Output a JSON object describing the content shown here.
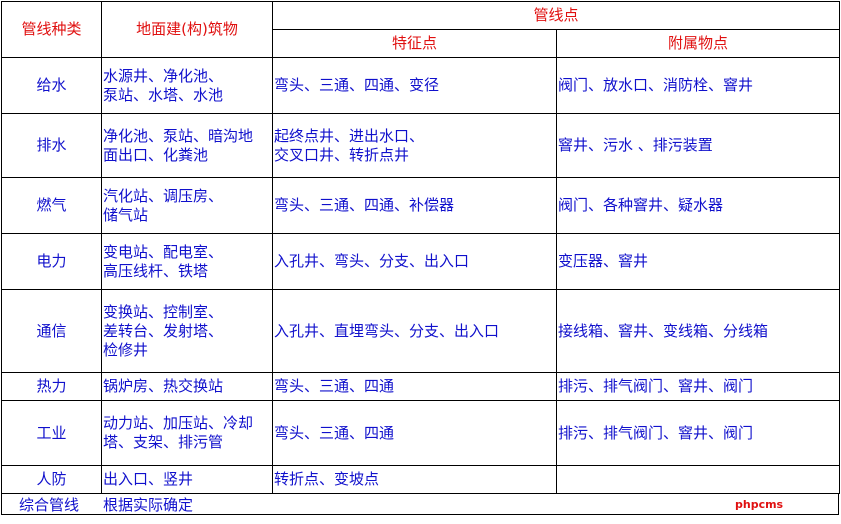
{
  "header": {
    "type": "管线种类",
    "buildings": "地面建(构)筑物",
    "points": "管线点",
    "features": "特征点",
    "attachments": "附属物点"
  },
  "rows": [
    {
      "type": "给水",
      "buildings": "水源井、净化池、\n泵站、水塔、水池",
      "features": "弯头、三通、四通、变径",
      "attachments": "阀门、放水口、消防栓、窨井"
    },
    {
      "type": "排水",
      "buildings": "净化池、泵站、暗沟地\n面出口、化粪池",
      "features": "起终点井、进出水口、\n交叉口井、转折点井",
      "attachments": "窨井、污水 、排污装置"
    },
    {
      "type": "燃气",
      "buildings": "汽化站、调压房、\n储气站",
      "features": "弯头、三通、四通、补偿器",
      "attachments": "阀门、各种窨井、疑水器"
    },
    {
      "type": "电力",
      "buildings": "变电站、配电室、\n高压线杆、铁塔",
      "features": "入孔井、弯头、分支、出入口",
      "attachments": "变压器、窨井"
    },
    {
      "type": "通信",
      "buildings": "变换站、控制室、\n差转台、发射塔、\n检修井",
      "features": "入孔井、直埋弯头、分支、出入口",
      "attachments": "接线箱、窨井、变线箱、分线箱"
    },
    {
      "type": "热力",
      "buildings": "锅炉房、热交换站",
      "features": "弯头、三通、四通",
      "attachments": "排污、排气阀门、窨井、阀门"
    },
    {
      "type": "工业",
      "buildings": "动力站、加压站、冷却\n塔、支架、排污管",
      "features": "弯头、三通、四通",
      "attachments": "排污、排气阀门、窨井、阀门"
    },
    {
      "type": "人防",
      "buildings": "出入口、竖井",
      "features": "转折点、变坡点",
      "attachments": ""
    }
  ],
  "footer": {
    "type": "综合管线",
    "note": "根据实际确定",
    "watermark": "phpcms"
  },
  "colors": {
    "header_text": "#e01010",
    "body_text": "#1010cc",
    "border": "#000000"
  }
}
